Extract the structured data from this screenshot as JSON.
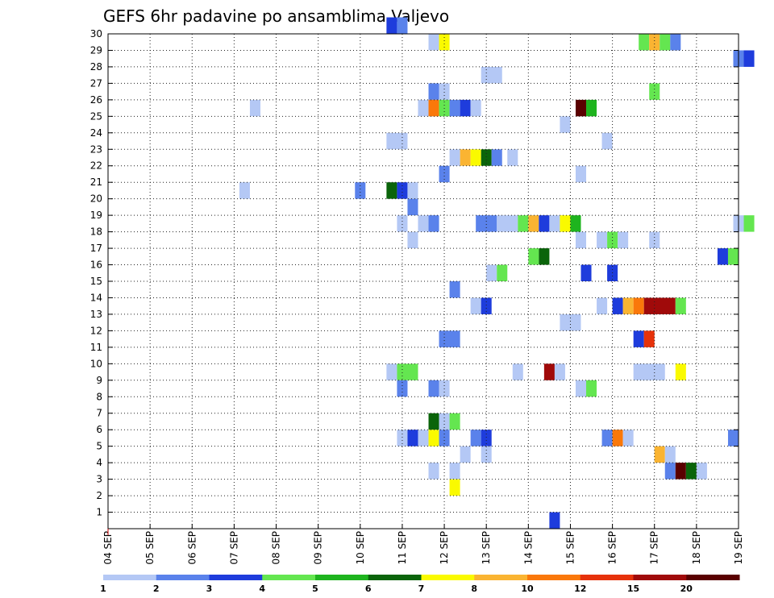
{
  "chart_data": {
    "type": "heatmap",
    "title": "GEFS 6hr padavine po ansamblima Valjevo",
    "xlabel": "",
    "ylabel": "",
    "x_ticks": [
      "04 SEP",
      "05 SEP",
      "06 SEP",
      "07 SEP",
      "08 SEP",
      "09 SEP",
      "10 SEP",
      "11 SEP",
      "12 SEP",
      "13 SEP",
      "14 SEP",
      "15 SEP",
      "16 SEP",
      "17 SEP",
      "18 SEP",
      "19 SEP"
    ],
    "y_ticks": [
      1,
      2,
      3,
      4,
      5,
      6,
      7,
      8,
      9,
      10,
      11,
      12,
      13,
      14,
      15,
      16,
      17,
      18,
      19,
      20,
      21,
      22,
      23,
      24,
      25,
      26,
      27,
      28,
      29,
      30
    ],
    "grid": true,
    "colorbar": {
      "labels": [
        "1",
        "2",
        "3",
        "4",
        "5",
        "6",
        "7",
        "8",
        "10",
        "12",
        "15",
        "20"
      ],
      "colors": [
        "#b4c8f5",
        "#5a82eb",
        "#1e3cdc",
        "#64e650",
        "#1eb41e",
        "#0a640a",
        "#fafa00",
        "#fab432",
        "#fa780a",
        "#e6320a",
        "#a00a0a",
        "#5a0000"
      ]
    },
    "cells": [
      {
        "m": 30,
        "s": [
          [
            26.5,
            1,
            3
          ],
          [
            27.5,
            1,
            2
          ]
        ]
      },
      {
        "m": 29,
        "s": [
          [
            30.5,
            1,
            1
          ],
          [
            31.5,
            1,
            7
          ],
          [
            50.5,
            1,
            4
          ],
          [
            51.5,
            1,
            8
          ],
          [
            52.5,
            1,
            4
          ],
          [
            53.5,
            1,
            2
          ]
        ]
      },
      {
        "m": 28,
        "s": [
          [
            59.5,
            1,
            2
          ],
          [
            60.5,
            1,
            3
          ]
        ]
      },
      {
        "m": 27,
        "s": [
          [
            35.5,
            2,
            1
          ]
        ]
      },
      {
        "m": 26,
        "s": [
          [
            30.5,
            1,
            2
          ],
          [
            31.5,
            1,
            1
          ],
          [
            51.5,
            1,
            4
          ]
        ]
      },
      {
        "m": 25,
        "s": [
          [
            13.5,
            1,
            1
          ],
          [
            29.5,
            1,
            1
          ],
          [
            30.5,
            1,
            9
          ],
          [
            31.5,
            1,
            4
          ],
          [
            32.5,
            1,
            2
          ],
          [
            33.5,
            1,
            3
          ],
          [
            34.5,
            1,
            1
          ],
          [
            44.5,
            1,
            12
          ],
          [
            45.5,
            1,
            5
          ]
        ]
      },
      {
        "m": 24,
        "s": [
          [
            43,
            1,
            1
          ]
        ]
      },
      {
        "m": 23,
        "s": [
          [
            26.5,
            2,
            1
          ],
          [
            47,
            1,
            1
          ]
        ]
      },
      {
        "m": 22,
        "s": [
          [
            32.5,
            1,
            1
          ],
          [
            33.5,
            1,
            8
          ],
          [
            34.5,
            1,
            7
          ],
          [
            35.5,
            1,
            6
          ],
          [
            36.5,
            1,
            2
          ],
          [
            38,
            1,
            1
          ]
        ]
      },
      {
        "m": 21,
        "s": [
          [
            31.5,
            1,
            2
          ],
          [
            44.5,
            1,
            1
          ]
        ]
      },
      {
        "m": 20,
        "s": [
          [
            12.5,
            1,
            1
          ],
          [
            23.5,
            1,
            2
          ],
          [
            26.5,
            1,
            6
          ],
          [
            27.5,
            1,
            3
          ],
          [
            28.5,
            1,
            1
          ]
        ]
      },
      {
        "m": 19,
        "s": [
          [
            28.5,
            1,
            2
          ]
        ]
      },
      {
        "m": 18,
        "s": [
          [
            27.5,
            1,
            1
          ],
          [
            29.5,
            1,
            1
          ],
          [
            30.5,
            1,
            2
          ],
          [
            35,
            2,
            2
          ],
          [
            37,
            2,
            1
          ],
          [
            39,
            1,
            4
          ],
          [
            40,
            1,
            8
          ],
          [
            41,
            1,
            3
          ],
          [
            42,
            1,
            1
          ],
          [
            43,
            1,
            7
          ],
          [
            44,
            1,
            5
          ],
          [
            59.5,
            1,
            1
          ],
          [
            60.5,
            1,
            4
          ]
        ]
      },
      {
        "m": 17,
        "s": [
          [
            28.5,
            1,
            1
          ],
          [
            44.5,
            1,
            1
          ],
          [
            46.5,
            1,
            1
          ],
          [
            47.5,
            1,
            4
          ],
          [
            48.5,
            1,
            1
          ],
          [
            51.5,
            1,
            1
          ]
        ]
      },
      {
        "m": 16,
        "s": [
          [
            40,
            1,
            4
          ],
          [
            41,
            1,
            6
          ],
          [
            58,
            1,
            3
          ],
          [
            59,
            1,
            4
          ]
        ]
      },
      {
        "m": 15,
        "s": [
          [
            36,
            1,
            1
          ],
          [
            37,
            1,
            4
          ],
          [
            45,
            1,
            3
          ],
          [
            47.5,
            1,
            3
          ]
        ]
      },
      {
        "m": 14,
        "s": [
          [
            32.5,
            1,
            2
          ]
        ]
      },
      {
        "m": 13,
        "s": [
          [
            34.5,
            1,
            1
          ],
          [
            35.5,
            1,
            3
          ],
          [
            46.5,
            1,
            1
          ],
          [
            48,
            1,
            3
          ],
          [
            49,
            1,
            8
          ],
          [
            50,
            1,
            9
          ],
          [
            51,
            3,
            11
          ],
          [
            54,
            1,
            4
          ]
        ]
      },
      {
        "m": 12,
        "s": [
          [
            43,
            2,
            1
          ]
        ]
      },
      {
        "m": 11,
        "s": [
          [
            31.5,
            2,
            2
          ],
          [
            50,
            1,
            3
          ],
          [
            51,
            1,
            10
          ]
        ]
      },
      {
        "m": 9,
        "s": [
          [
            26.5,
            1,
            1
          ],
          [
            27.5,
            2,
            4
          ],
          [
            38.5,
            1,
            1
          ],
          [
            41.5,
            1,
            11
          ],
          [
            42.5,
            1,
            1
          ],
          [
            50,
            3,
            1
          ],
          [
            54,
            1,
            7
          ]
        ]
      },
      {
        "m": 8,
        "s": [
          [
            27.5,
            1,
            2
          ],
          [
            30.5,
            1,
            2
          ],
          [
            31.5,
            1,
            1
          ],
          [
            44.5,
            1,
            1
          ],
          [
            45.5,
            1,
            4
          ]
        ]
      },
      {
        "m": 6,
        "s": [
          [
            30.5,
            1,
            6
          ],
          [
            31.5,
            1,
            1
          ],
          [
            32.5,
            1,
            4
          ]
        ]
      },
      {
        "m": 5,
        "s": [
          [
            27.5,
            1,
            1
          ],
          [
            28.5,
            1,
            3
          ],
          [
            29.5,
            1,
            1
          ],
          [
            30.5,
            1,
            7
          ],
          [
            31.5,
            1,
            2
          ],
          [
            34.5,
            1,
            2
          ],
          [
            35.5,
            1,
            3
          ],
          [
            47,
            1,
            2
          ],
          [
            48,
            1,
            9
          ],
          [
            49,
            1,
            1
          ],
          [
            59,
            1,
            2
          ]
        ]
      },
      {
        "m": 4,
        "s": [
          [
            33.5,
            1,
            1
          ],
          [
            35.5,
            1,
            1
          ],
          [
            52,
            1,
            8
          ],
          [
            53,
            1,
            1
          ]
        ]
      },
      {
        "m": 3,
        "s": [
          [
            30.5,
            1,
            1
          ],
          [
            32.5,
            1,
            1
          ],
          [
            53,
            1,
            2
          ],
          [
            54,
            1,
            12
          ],
          [
            55,
            1,
            6
          ],
          [
            56,
            1,
            1
          ]
        ]
      },
      {
        "m": 2,
        "s": [
          [
            32.5,
            1,
            7
          ]
        ]
      },
      {
        "m": 0,
        "s": [
          [
            42,
            1,
            3
          ]
        ]
      }
    ]
  }
}
